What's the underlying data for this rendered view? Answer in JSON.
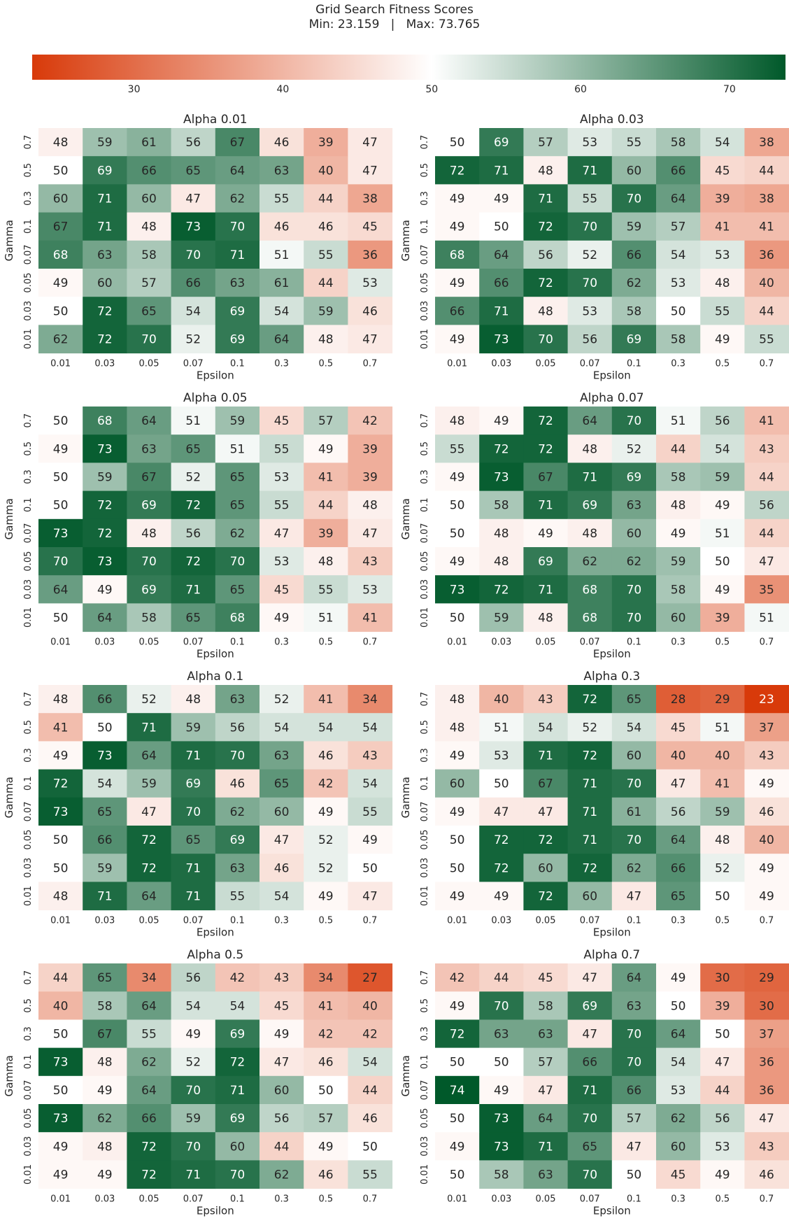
{
  "title": {
    "line1": "Grid Search Fitness Scores",
    "line2": "Min: 23.159   |   Max: 73.765"
  },
  "colors": {
    "low": "#d83a0a",
    "mid": "#ffffff",
    "high": "#00592a"
  },
  "colorbar": {
    "min": 23.159,
    "max": 73.765,
    "mid": 50,
    "ticks": [
      30,
      40,
      50,
      60,
      70
    ]
  },
  "chart_data": {
    "type": "heatmap",
    "xlabel": "Epsilon",
    "ylabel": "Gamma",
    "x_ticks": [
      "0.01",
      "0.03",
      "0.05",
      "0.07",
      "0.1",
      "0.3",
      "0.5",
      "0.7"
    ],
    "y_ticks": [
      "0.7",
      "0.5",
      "0.3",
      "0.1",
      "0.07",
      "0.05",
      "0.03",
      "0.01"
    ],
    "panels": [
      {
        "title": "Alpha 0.01",
        "values": [
          [
            48,
            59,
            61,
            56,
            67,
            46,
            39,
            47
          ],
          [
            50,
            69,
            66,
            65,
            64,
            63,
            40,
            47
          ],
          [
            60,
            71,
            60,
            47,
            62,
            55,
            44,
            38
          ],
          [
            67,
            71,
            48,
            73,
            70,
            46,
            46,
            45
          ],
          [
            68,
            63,
            58,
            70,
            71,
            51,
            55,
            36
          ],
          [
            49,
            60,
            57,
            66,
            63,
            61,
            44,
            53
          ],
          [
            50,
            72,
            65,
            54,
            69,
            54,
            59,
            46
          ],
          [
            62,
            72,
            70,
            52,
            69,
            64,
            48,
            47
          ]
        ]
      },
      {
        "title": "Alpha 0.03",
        "values": [
          [
            50,
            69,
            57,
            53,
            55,
            58,
            54,
            38
          ],
          [
            72,
            71,
            48,
            71,
            60,
            66,
            45,
            44
          ],
          [
            49,
            49,
            71,
            55,
            70,
            64,
            39,
            38
          ],
          [
            49,
            50,
            72,
            70,
            59,
            57,
            41,
            41
          ],
          [
            68,
            64,
            56,
            52,
            66,
            54,
            53,
            36
          ],
          [
            49,
            66,
            72,
            70,
            62,
            53,
            48,
            40
          ],
          [
            66,
            71,
            48,
            53,
            58,
            50,
            55,
            44
          ],
          [
            49,
            73,
            70,
            56,
            69,
            58,
            49,
            55
          ]
        ]
      },
      {
        "title": "Alpha 0.05",
        "values": [
          [
            50,
            68,
            64,
            51,
            59,
            45,
            57,
            42
          ],
          [
            49,
            73,
            63,
            65,
            51,
            55,
            49,
            39
          ],
          [
            50,
            59,
            67,
            52,
            65,
            53,
            41,
            39
          ],
          [
            50,
            72,
            69,
            72,
            65,
            55,
            44,
            48
          ],
          [
            73,
            72,
            48,
            56,
            62,
            47,
            39,
            47
          ],
          [
            70,
            73,
            70,
            72,
            70,
            53,
            48,
            43
          ],
          [
            64,
            49,
            69,
            71,
            65,
            45,
            55,
            53
          ],
          [
            50,
            64,
            58,
            65,
            68,
            49,
            51,
            41
          ]
        ]
      },
      {
        "title": "Alpha 0.07",
        "values": [
          [
            48,
            49,
            72,
            64,
            70,
            51,
            56,
            41
          ],
          [
            55,
            72,
            72,
            48,
            52,
            44,
            54,
            43
          ],
          [
            49,
            73,
            67,
            71,
            69,
            58,
            59,
            44
          ],
          [
            50,
            58,
            71,
            69,
            63,
            48,
            49,
            56
          ],
          [
            50,
            48,
            49,
            48,
            60,
            49,
            51,
            44
          ],
          [
            49,
            48,
            69,
            62,
            62,
            59,
            50,
            47
          ],
          [
            73,
            72,
            71,
            68,
            70,
            58,
            49,
            35
          ],
          [
            50,
            59,
            48,
            68,
            70,
            60,
            39,
            51
          ]
        ]
      },
      {
        "title": "Alpha 0.1",
        "values": [
          [
            48,
            66,
            52,
            48,
            63,
            52,
            41,
            34
          ],
          [
            41,
            50,
            71,
            59,
            56,
            54,
            54,
            54
          ],
          [
            49,
            73,
            64,
            71,
            70,
            63,
            46,
            43
          ],
          [
            72,
            54,
            59,
            69,
            46,
            65,
            42,
            54
          ],
          [
            73,
            65,
            47,
            70,
            62,
            60,
            49,
            55
          ],
          [
            50,
            66,
            72,
            65,
            69,
            47,
            52,
            49
          ],
          [
            50,
            59,
            72,
            71,
            63,
            46,
            52,
            50
          ],
          [
            48,
            71,
            64,
            71,
            55,
            54,
            49,
            47
          ]
        ]
      },
      {
        "title": "Alpha 0.3",
        "values": [
          [
            48,
            40,
            43,
            72,
            65,
            28,
            29,
            23
          ],
          [
            48,
            51,
            54,
            52,
            54,
            45,
            51,
            37
          ],
          [
            49,
            53,
            71,
            72,
            60,
            40,
            40,
            43
          ],
          [
            60,
            50,
            67,
            71,
            70,
            47,
            41,
            49
          ],
          [
            49,
            47,
            47,
            71,
            61,
            56,
            59,
            46
          ],
          [
            50,
            72,
            72,
            71,
            70,
            64,
            48,
            40
          ],
          [
            50,
            72,
            60,
            72,
            62,
            66,
            52,
            49
          ],
          [
            49,
            49,
            72,
            60,
            47,
            65,
            50,
            49
          ]
        ]
      },
      {
        "title": "Alpha 0.5",
        "values": [
          [
            44,
            65,
            34,
            56,
            42,
            43,
            34,
            27
          ],
          [
            40,
            58,
            64,
            54,
            54,
            45,
            41,
            40
          ],
          [
            50,
            67,
            55,
            49,
            69,
            49,
            42,
            42
          ],
          [
            73,
            48,
            62,
            52,
            72,
            47,
            46,
            54
          ],
          [
            50,
            49,
            64,
            70,
            71,
            60,
            50,
            44
          ],
          [
            73,
            62,
            66,
            59,
            69,
            56,
            57,
            46
          ],
          [
            49,
            48,
            72,
            70,
            60,
            44,
            49,
            50
          ],
          [
            49,
            49,
            72,
            71,
            70,
            62,
            46,
            55
          ]
        ]
      },
      {
        "title": "Alpha 0.7",
        "values": [
          [
            42,
            44,
            45,
            47,
            64,
            49,
            30,
            29
          ],
          [
            49,
            70,
            58,
            69,
            63,
            50,
            39,
            30
          ],
          [
            72,
            63,
            63,
            47,
            70,
            64,
            50,
            37
          ],
          [
            50,
            50,
            57,
            66,
            70,
            54,
            47,
            36
          ],
          [
            74,
            49,
            47,
            71,
            66,
            53,
            44,
            36
          ],
          [
            50,
            73,
            64,
            70,
            57,
            62,
            56,
            47
          ],
          [
            49,
            73,
            71,
            65,
            47,
            60,
            53,
            43
          ],
          [
            50,
            58,
            63,
            70,
            50,
            45,
            49,
            46
          ]
        ]
      }
    ]
  }
}
